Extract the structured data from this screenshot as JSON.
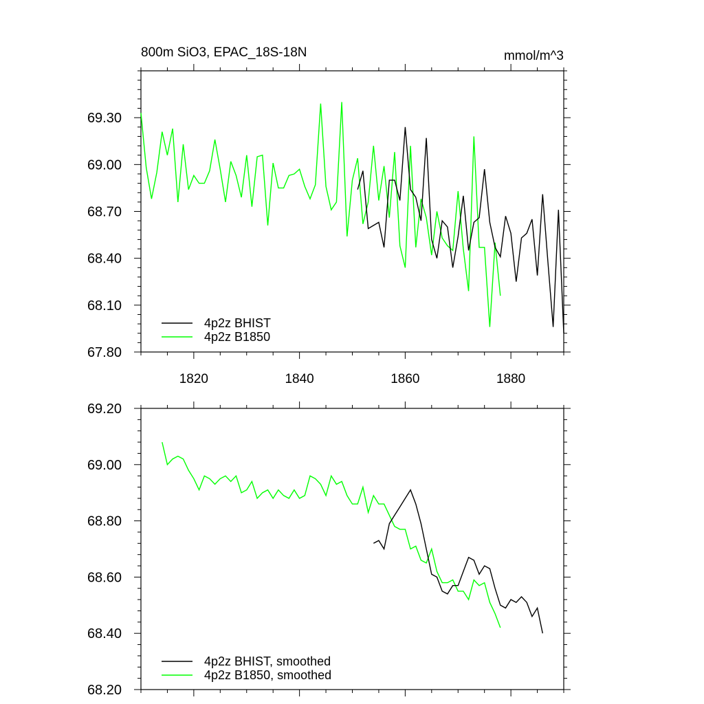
{
  "chart_data": [
    {
      "type": "line",
      "title": "800m SiO3, EPAC_18S-18N",
      "units": "mmol/m^3",
      "xlim": [
        1810,
        1890
      ],
      "ylim": [
        67.8,
        69.6
      ],
      "xticks": [
        1820,
        1840,
        1860,
        1880
      ],
      "xtick_labels": [
        "1820",
        "1840",
        "1860",
        "1880"
      ],
      "yticks": [
        67.8,
        68.1,
        68.4,
        68.7,
        69.0,
        69.3
      ],
      "ytick_labels": [
        "67.80",
        "68.10",
        "68.40",
        "68.70",
        "69.00",
        "69.30"
      ],
      "legend_position": "bottom-left",
      "series": [
        {
          "name": "4p2z BHIST",
          "color": "#000000",
          "x0": 1851,
          "values": [
            68.84,
            68.96,
            68.59,
            68.61,
            68.63,
            68.47,
            68.9,
            68.9,
            68.77,
            69.24,
            68.84,
            68.79,
            68.64,
            69.17,
            68.52,
            68.4,
            68.64,
            68.6,
            68.34,
            68.54,
            68.8,
            68.45,
            68.63,
            68.66,
            68.97,
            68.63,
            68.47,
            68.41,
            68.67,
            68.56,
            68.25,
            68.53,
            68.56,
            68.65,
            68.29,
            68.81,
            68.38,
            67.96,
            68.71,
            67.92
          ]
        },
        {
          "name": "4p2z B1850",
          "color": "#00ff00",
          "x0": 1810,
          "values": [
            69.33,
            68.98,
            68.78,
            68.95,
            69.21,
            69.06,
            69.23,
            68.76,
            69.13,
            68.84,
            68.93,
            68.88,
            68.88,
            68.96,
            69.16,
            68.97,
            68.76,
            69.02,
            68.93,
            68.79,
            69.06,
            68.73,
            69.05,
            69.06,
            68.61,
            69.01,
            68.85,
            68.85,
            68.93,
            68.94,
            68.97,
            68.86,
            68.78,
            68.87,
            69.39,
            68.86,
            68.71,
            68.76,
            69.4,
            68.54,
            68.9,
            69.04,
            68.62,
            68.76,
            69.12,
            68.77,
            68.99,
            68.66,
            69.08,
            68.48,
            68.34,
            69.12,
            68.47,
            68.78,
            68.66,
            68.42,
            68.7,
            68.53,
            68.48,
            68.45,
            68.83,
            68.46,
            68.19,
            69.18,
            68.47,
            68.47,
            67.96,
            68.5,
            68.16
          ]
        }
      ]
    },
    {
      "type": "line",
      "title": "",
      "xlim": [
        1810,
        1890
      ],
      "ylim": [
        68.2,
        69.2
      ],
      "xticks": [
        1820,
        1840,
        1860,
        1880
      ],
      "yticks": [
        68.2,
        68.4,
        68.6,
        68.8,
        69.0,
        69.2
      ],
      "ytick_labels": [
        "68.20",
        "68.40",
        "68.60",
        "68.80",
        "69.00",
        "69.20"
      ],
      "legend_position": "bottom-left",
      "series": [
        {
          "name": "4p2z BHIST, smoothed",
          "color": "#000000",
          "x0": 1854,
          "values": [
            68.72,
            68.73,
            68.7,
            68.79,
            68.82,
            68.85,
            68.88,
            68.91,
            68.86,
            68.79,
            68.7,
            68.61,
            68.6,
            68.55,
            68.54,
            68.57,
            68.57,
            68.62,
            68.67,
            68.66,
            68.61,
            68.64,
            68.63,
            68.56,
            68.5,
            68.49,
            68.52,
            68.51,
            68.53,
            68.51,
            68.46,
            68.49,
            68.4
          ]
        },
        {
          "name": "4p2z B1850, smoothed",
          "color": "#00ff00",
          "x0": 1814,
          "values": [
            69.08,
            69.0,
            69.02,
            69.03,
            69.02,
            68.98,
            68.95,
            68.91,
            68.96,
            68.95,
            68.93,
            68.95,
            68.96,
            68.94,
            68.96,
            68.9,
            68.91,
            68.94,
            68.88,
            68.9,
            68.91,
            68.88,
            68.91,
            68.89,
            68.88,
            68.91,
            68.88,
            68.89,
            68.96,
            68.95,
            68.93,
            68.89,
            68.96,
            68.93,
            68.94,
            68.89,
            68.86,
            68.86,
            68.92,
            68.83,
            68.89,
            68.86,
            68.86,
            68.82,
            68.78,
            68.77,
            68.77,
            68.7,
            68.71,
            68.66,
            68.65,
            68.7,
            68.62,
            68.58,
            68.58,
            68.59,
            68.55,
            68.55,
            68.52,
            68.59,
            68.57,
            68.58,
            68.51,
            68.47,
            68.42
          ]
        }
      ]
    }
  ]
}
